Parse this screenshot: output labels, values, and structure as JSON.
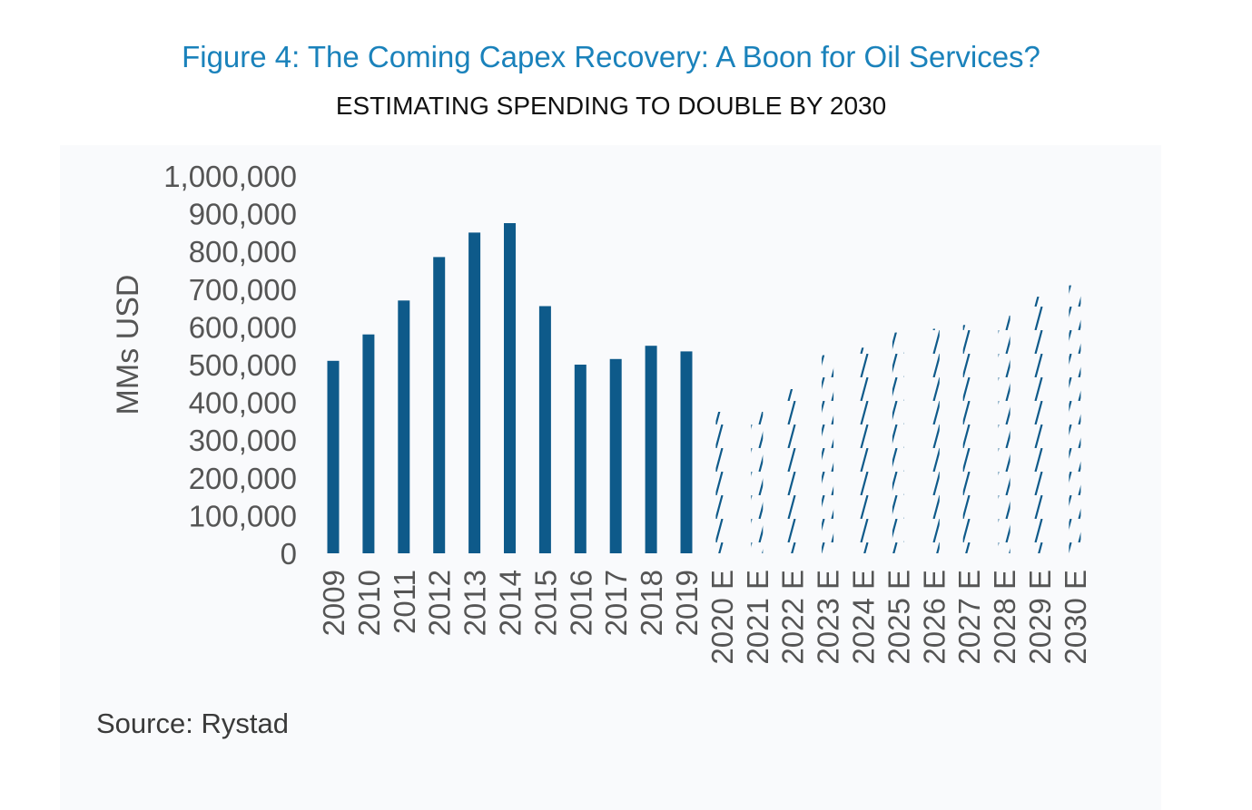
{
  "figure": {
    "title": "Figure 4: The Coming Capex Recovery: A Boon for Oil Services?",
    "subtitle": "ESTIMATING SPENDING TO DOUBLE BY 2030",
    "source": "Source: Rystad"
  },
  "colors": {
    "title": "#1a82bb",
    "bar": "#0e5a8a",
    "axis_text": "#555555",
    "panel": "#f9fafc"
  },
  "chart_data": {
    "type": "bar",
    "title": "",
    "xlabel": "",
    "ylabel": "MMs USD",
    "ylim": [
      0,
      1000000
    ],
    "y_ticks": [
      0,
      100000,
      200000,
      300000,
      400000,
      500000,
      600000,
      700000,
      800000,
      900000,
      1000000
    ],
    "y_tick_labels": [
      "0",
      "100,000",
      "200,000",
      "300,000",
      "400,000",
      "500,000",
      "600,000",
      "700,000",
      "800,000",
      "900,000",
      "1,000,000"
    ],
    "grid": false,
    "legend": "none",
    "categories": [
      "2009",
      "2010",
      "2011",
      "2012",
      "2013",
      "2014",
      "2015",
      "2016",
      "2017",
      "2018",
      "2019",
      "2020 E",
      "2021 E",
      "2022 E",
      "2023 E",
      "2024 E",
      "2025 E",
      "2026 E",
      "2027 E",
      "2028 E",
      "2029 E",
      "2030 E"
    ],
    "values": [
      510000,
      580000,
      670000,
      785000,
      850000,
      875000,
      655000,
      500000,
      515000,
      550000,
      535000,
      375000,
      375000,
      435000,
      525000,
      545000,
      585000,
      595000,
      605000,
      630000,
      680000,
      710000
    ],
    "estimated": [
      false,
      false,
      false,
      false,
      false,
      false,
      false,
      false,
      false,
      false,
      false,
      true,
      true,
      true,
      true,
      true,
      true,
      true,
      true,
      true,
      true,
      true
    ]
  }
}
